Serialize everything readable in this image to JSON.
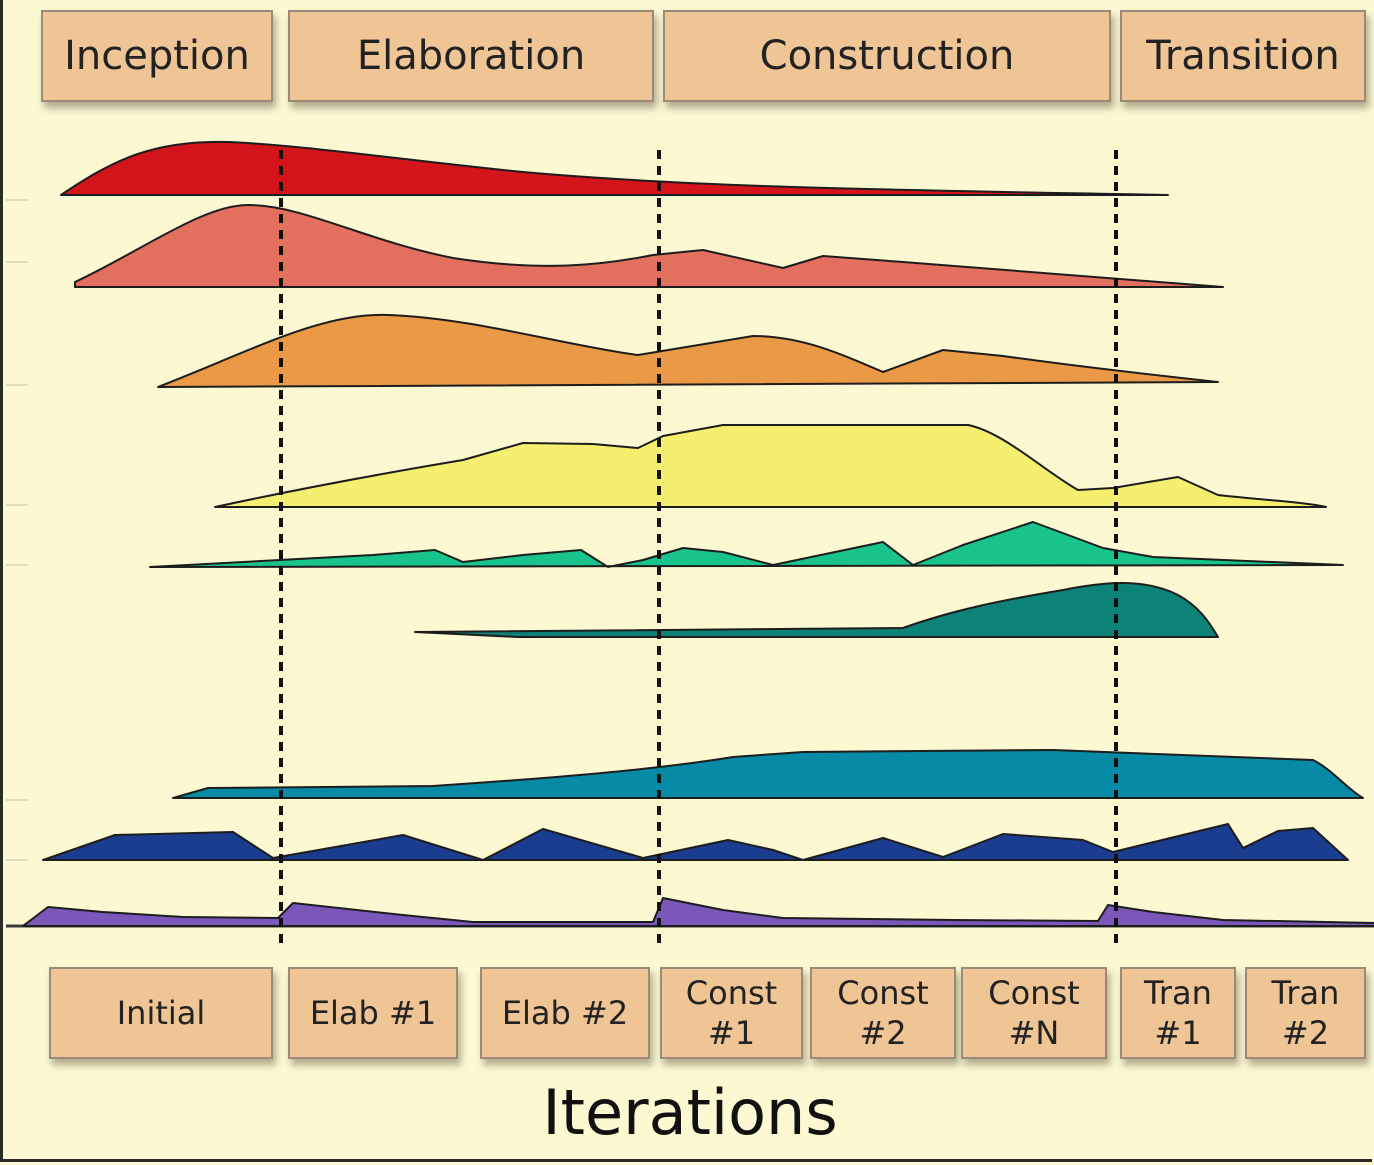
{
  "phases": [
    "Inception",
    "Elaboration",
    "Construction",
    "Transition"
  ],
  "iterations": [
    "Initial",
    "Elab #1",
    "Elab #2",
    "Const\n#1",
    "Const\n#2",
    "Const\n#N",
    "Tran\n#1",
    "Tran\n#2"
  ],
  "axis_label": "Iterations",
  "workflows": [
    {
      "color": "#d3141a"
    },
    {
      "color": "#e3705f"
    },
    {
      "color": "#ea9a46"
    },
    {
      "color": "#f4ef6f"
    },
    {
      "color": "#19c38c"
    },
    {
      "color": "#0d8378"
    },
    {
      "color": "#068aa5"
    },
    {
      "color": "#1b3d8f"
    },
    {
      "color": "#7a57b9"
    }
  ]
}
